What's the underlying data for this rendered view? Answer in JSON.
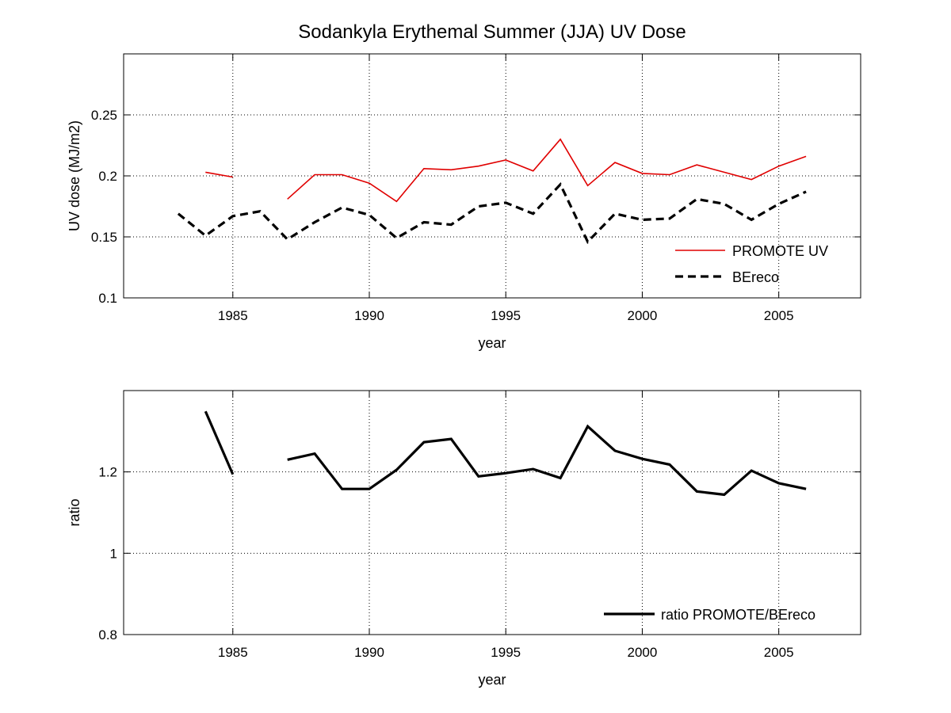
{
  "chart_data": [
    {
      "type": "line",
      "title": "Sodankyla Erythemal Summer (JJA) UV Dose",
      "xlabel": "year",
      "ylabel": "UV dose (MJ/m2)",
      "xlim": [
        1981,
        2008
      ],
      "ylim": [
        0.1,
        0.3
      ],
      "xticks": [
        1985,
        1990,
        1995,
        2000,
        2005
      ],
      "xtick_labels": [
        "1985",
        "1990",
        "1995",
        "2000",
        "2005"
      ],
      "yticks": [
        0.1,
        0.15,
        0.2,
        0.25
      ],
      "ytick_labels": [
        "0.1",
        "0.15",
        "0.2",
        "0.25"
      ],
      "grid": true,
      "legend_position": "bottom-right",
      "series": [
        {
          "name": "PROMOTE UV",
          "color": "#e00000",
          "style": "solid",
          "x": [
            1983,
            1984,
            1985,
            1986,
            1987,
            1988,
            1989,
            1990,
            1991,
            1992,
            1993,
            1994,
            1995,
            1996,
            1997,
            1998,
            1999,
            2000,
            2001,
            2002,
            2003,
            2004,
            2005,
            2006
          ],
          "y": [
            null,
            0.203,
            0.199,
            null,
            0.181,
            0.201,
            0.201,
            0.194,
            0.179,
            0.206,
            0.205,
            0.208,
            0.213,
            0.204,
            0.23,
            0.192,
            0.211,
            0.202,
            0.201,
            0.209,
            0.203,
            0.197,
            0.208,
            0.216
          ]
        },
        {
          "name": "BEreco",
          "color": "#000000",
          "style": "dashed",
          "x": [
            1983,
            1984,
            1985,
            1986,
            1987,
            1988,
            1989,
            1990,
            1991,
            1992,
            1993,
            1994,
            1995,
            1996,
            1997,
            1998,
            1999,
            2000,
            2001,
            2002,
            2003,
            2004,
            2005,
            2006
          ],
          "y": [
            0.169,
            0.151,
            0.167,
            0.171,
            0.148,
            0.162,
            0.174,
            0.168,
            0.149,
            0.162,
            0.16,
            0.175,
            0.178,
            0.169,
            0.193,
            0.146,
            0.169,
            0.164,
            0.165,
            0.181,
            0.177,
            0.164,
            0.177,
            0.187
          ]
        }
      ]
    },
    {
      "type": "line",
      "title": "",
      "xlabel": "year",
      "ylabel": "ratio",
      "xlim": [
        1981,
        2008
      ],
      "ylim": [
        0.8,
        1.4
      ],
      "xticks": [
        1985,
        1990,
        1995,
        2000,
        2005
      ],
      "xtick_labels": [
        "1985",
        "1990",
        "1995",
        "2000",
        "2005"
      ],
      "yticks": [
        0.8,
        1.0,
        1.2
      ],
      "ytick_labels": [
        "0.8",
        "1",
        "1.2"
      ],
      "grid": true,
      "legend_position": "bottom-right",
      "series": [
        {
          "name": "ratio PROMOTE/BEreco",
          "color": "#000000",
          "style": "solid",
          "x": [
            1984,
            1985,
            1986,
            1987,
            1988,
            1989,
            1990,
            1991,
            1992,
            1993,
            1994,
            1995,
            1996,
            1997,
            1998,
            1999,
            2000,
            2001,
            2002,
            2003,
            2004,
            2005,
            2006
          ],
          "y": [
            1.349,
            1.194,
            null,
            1.23,
            1.245,
            1.158,
            1.158,
            1.205,
            1.273,
            1.281,
            1.189,
            1.197,
            1.207,
            1.185,
            1.312,
            1.252,
            1.232,
            1.218,
            1.152,
            1.144,
            1.203,
            1.172,
            1.158
          ]
        }
      ]
    }
  ]
}
